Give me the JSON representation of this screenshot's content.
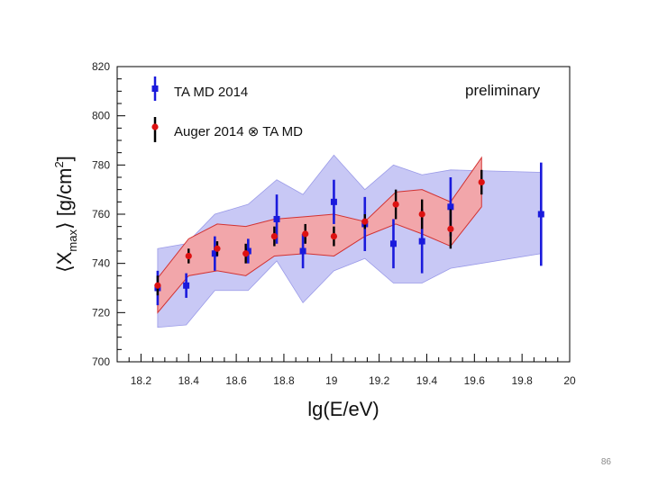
{
  "page_number": "86",
  "chart_data": {
    "type": "scatter",
    "title": "",
    "annotation": "preliminary",
    "xlabel": "lg(E/eV)",
    "ylabel_main": "⟨X",
    "ylabel_sub": "max",
    "ylabel_tail": "⟩ [g/cm",
    "ylabel_sup": "2",
    "ylabel_close": "]",
    "xlim": [
      18.1,
      20.0
    ],
    "ylim": [
      700,
      820
    ],
    "x_ticks": [
      18.2,
      18.4,
      18.6,
      18.8,
      19.0,
      19.2,
      19.4,
      19.6,
      19.8,
      20.0
    ],
    "x_tick_labels": [
      "18.2",
      "18.4",
      "18.6",
      "18.8",
      "19",
      "19.2",
      "19.4",
      "19.6",
      "19.8",
      "20"
    ],
    "y_ticks": [
      700,
      720,
      740,
      760,
      780,
      800,
      820
    ],
    "y_tick_labels": [
      "700",
      "720",
      "740",
      "760",
      "780",
      "800",
      "820"
    ],
    "legend_position": "top-left",
    "colors": {
      "ta_marker": "#1a1adc",
      "ta_band": "#c8c8f5",
      "ta_band_edge": "#9a9ae8",
      "auger_marker": "#dd1111",
      "auger_errbar": "#000000",
      "auger_band": "#f5a3a3",
      "auger_band_edge": "#d23232"
    },
    "series": [
      {
        "name": "TA MD 2014",
        "marker": "square",
        "x": [
          18.27,
          18.39,
          18.51,
          18.65,
          18.77,
          18.88,
          19.01,
          19.14,
          19.26,
          19.38,
          19.5,
          19.88
        ],
        "y": [
          730,
          731,
          744,
          745,
          758,
          745,
          765,
          756,
          748,
          749,
          763,
          760
        ],
        "err": [
          7,
          5,
          7,
          5,
          10,
          7,
          9,
          11,
          10,
          13,
          12,
          21
        ],
        "band_upper": [
          746,
          748,
          760,
          764,
          774,
          768,
          784,
          770,
          780,
          776,
          778,
          777
        ],
        "band_lower": [
          714,
          715,
          729,
          729,
          741,
          724,
          737,
          742,
          732,
          732,
          738,
          744
        ]
      },
      {
        "name": "Auger 2014 ⊗ TA MD",
        "marker": "circle",
        "x": [
          18.27,
          18.4,
          18.52,
          18.64,
          18.76,
          18.89,
          19.01,
          19.14,
          19.27,
          19.38,
          19.5,
          19.63
        ],
        "y": [
          731,
          743,
          746,
          744,
          751,
          752,
          751,
          757,
          764,
          760,
          754,
          773
        ],
        "err": [
          4,
          3,
          3,
          4,
          4,
          4,
          4,
          3,
          6,
          6,
          8,
          5
        ],
        "band_upper": [
          734,
          750,
          756,
          755,
          758,
          759,
          760,
          757,
          769,
          770,
          765,
          783
        ],
        "band_lower": [
          720,
          735,
          737,
          735,
          743,
          744,
          743,
          751,
          756,
          752,
          747,
          763
        ]
      }
    ]
  }
}
